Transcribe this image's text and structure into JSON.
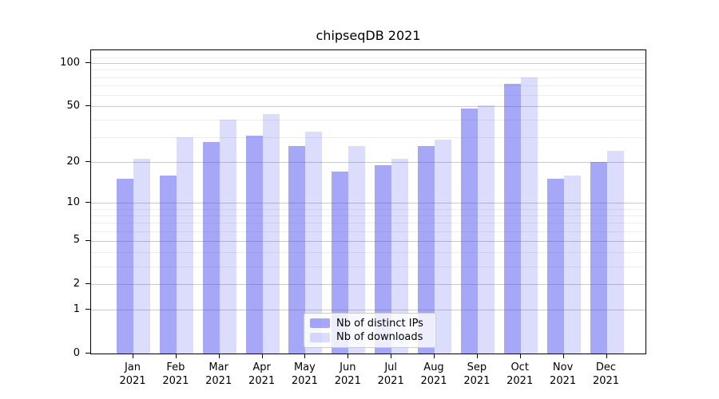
{
  "chart_data": {
    "type": "bar",
    "title": "chipseqDB 2021",
    "categories": [
      "Jan",
      "Feb",
      "Mar",
      "Apr",
      "May",
      "Jun",
      "Jul",
      "Aug",
      "Sep",
      "Oct",
      "Nov",
      "Dec"
    ],
    "year_label": "2021",
    "series": [
      {
        "name": "Nb of distinct IPs",
        "color": "rgba(80,80,240,0.5)",
        "values": [
          15,
          16,
          28,
          31,
          26,
          17,
          19,
          26,
          48,
          72,
          15,
          20
        ]
      },
      {
        "name": "Nb of downloads",
        "color": "rgba(80,80,240,0.2)",
        "values": [
          21,
          30,
          40,
          44,
          33,
          26,
          21,
          29,
          51,
          80,
          16,
          24
        ]
      }
    ],
    "ylabel": "",
    "xlabel": "",
    "yscale": "symlog (t = ln(1+v))",
    "ylim": [
      0,
      123
    ],
    "yticks": [
      0,
      1,
      2,
      5,
      10,
      20,
      50,
      100
    ],
    "minor_gridlines": [
      3,
      4,
      6,
      7,
      8,
      9,
      30,
      40,
      60,
      70,
      80,
      90,
      110
    ],
    "grid": true,
    "legend_position": "lower center"
  },
  "colors": {
    "major_grid": "#c9c9c9",
    "minor_grid": "#ededed",
    "spine": "#000000",
    "background": "#ffffff"
  }
}
